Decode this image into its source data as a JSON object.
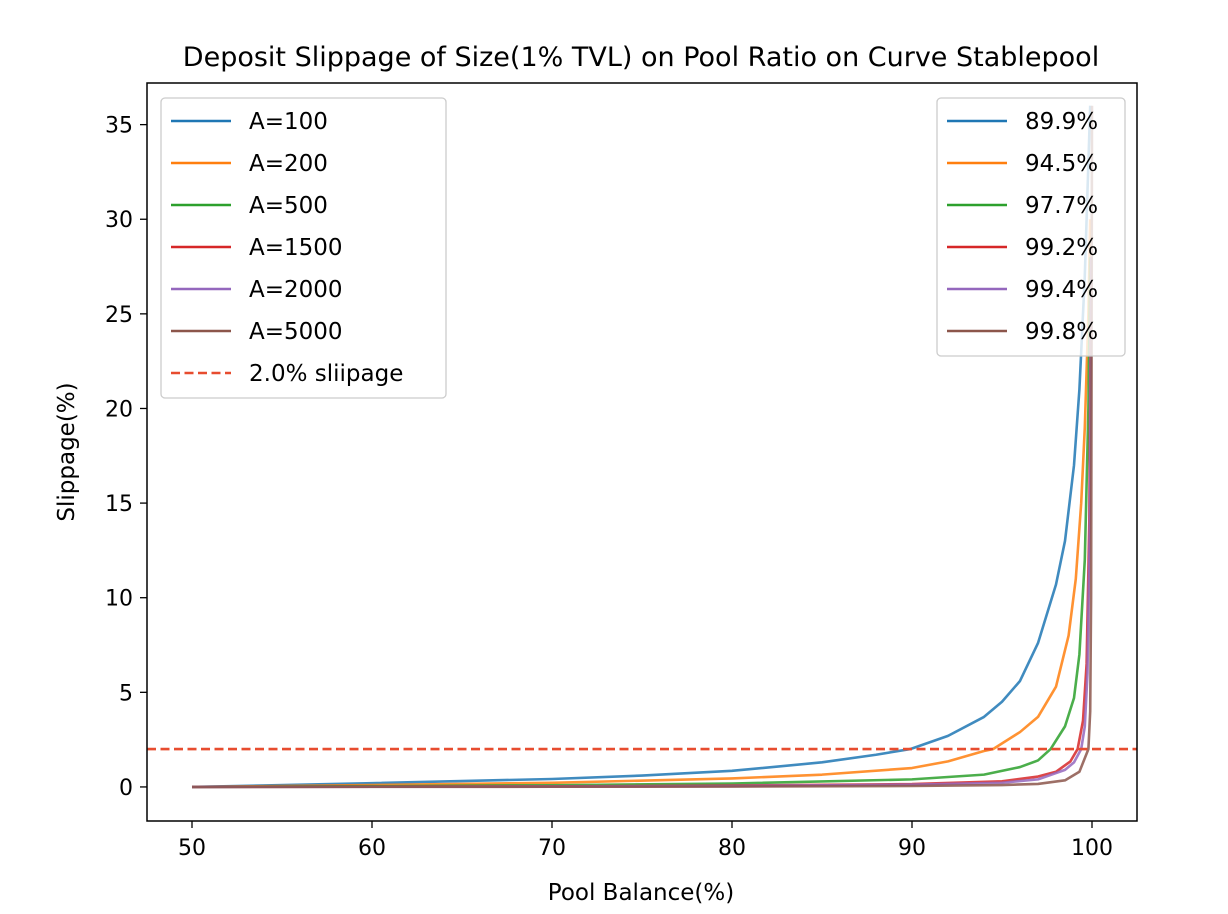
{
  "chart_data": {
    "type": "line",
    "title": "Deposit Slippage of Size(1% TVL) on Pool Ratio on Curve Stablepool",
    "xlabel": "Pool Balance(%)",
    "ylabel": "Slippage(%)",
    "xlim": [
      47.5,
      102.5
    ],
    "ylim": [
      -1.8,
      37.2
    ],
    "xticks": [
      50,
      60,
      70,
      80,
      90,
      100
    ],
    "yticks": [
      0,
      5,
      10,
      15,
      20,
      25,
      30,
      35
    ],
    "grid": false,
    "series": [
      {
        "name": "A=100",
        "color": "#1f77b4",
        "points": [
          [
            50,
            0
          ],
          [
            60,
            0.2
          ],
          [
            70,
            0.42
          ],
          [
            75,
            0.6
          ],
          [
            80,
            0.85
          ],
          [
            85,
            1.3
          ],
          [
            88,
            1.7
          ],
          [
            89.9,
            2.0
          ],
          [
            92,
            2.7
          ],
          [
            94,
            3.7
          ],
          [
            95,
            4.5
          ],
          [
            96,
            5.6
          ],
          [
            97,
            7.6
          ],
          [
            98,
            10.7
          ],
          [
            98.5,
            13
          ],
          [
            99,
            17
          ],
          [
            99.3,
            21
          ],
          [
            99.6,
            27
          ],
          [
            99.8,
            33
          ],
          [
            99.9,
            36
          ]
        ]
      },
      {
        "name": "A=200",
        "color": "#ff7f0e",
        "points": [
          [
            50,
            0
          ],
          [
            60,
            0.1
          ],
          [
            70,
            0.22
          ],
          [
            80,
            0.45
          ],
          [
            85,
            0.65
          ],
          [
            90,
            1.0
          ],
          [
            92,
            1.35
          ],
          [
            94,
            1.9
          ],
          [
            94.5,
            2.0
          ],
          [
            96,
            2.9
          ],
          [
            97,
            3.7
          ],
          [
            98,
            5.3
          ],
          [
            98.7,
            8
          ],
          [
            99.1,
            11
          ],
          [
            99.4,
            15
          ],
          [
            99.6,
            19
          ],
          [
            99.8,
            25
          ],
          [
            99.9,
            30
          ]
        ]
      },
      {
        "name": "A=500",
        "color": "#2ca02c",
        "points": [
          [
            50,
            0
          ],
          [
            60,
            0.04
          ],
          [
            70,
            0.09
          ],
          [
            80,
            0.18
          ],
          [
            90,
            0.4
          ],
          [
            94,
            0.65
          ],
          [
            96,
            1.05
          ],
          [
            97,
            1.4
          ],
          [
            97.7,
            2.0
          ],
          [
            98.5,
            3.2
          ],
          [
            99,
            4.7
          ],
          [
            99.3,
            7
          ],
          [
            99.6,
            12
          ],
          [
            99.8,
            20
          ],
          [
            99.9,
            28
          ]
        ]
      },
      {
        "name": "A=1500",
        "color": "#d62728",
        "points": [
          [
            50,
            0
          ],
          [
            70,
            0.03
          ],
          [
            80,
            0.07
          ],
          [
            90,
            0.15
          ],
          [
            95,
            0.3
          ],
          [
            97,
            0.55
          ],
          [
            98,
            0.8
          ],
          [
            98.8,
            1.35
          ],
          [
            99.2,
            2.0
          ],
          [
            99.5,
            3.5
          ],
          [
            99.7,
            6.5
          ],
          [
            99.85,
            14
          ],
          [
            99.95,
            28
          ]
        ]
      },
      {
        "name": "A=2000",
        "color": "#9467bd",
        "points": [
          [
            50,
            0
          ],
          [
            70,
            0.02
          ],
          [
            80,
            0.05
          ],
          [
            90,
            0.12
          ],
          [
            95,
            0.22
          ],
          [
            97,
            0.4
          ],
          [
            98.5,
            0.9
          ],
          [
            99,
            1.3
          ],
          [
            99.4,
            2.0
          ],
          [
            99.6,
            3.2
          ],
          [
            99.75,
            6
          ],
          [
            99.88,
            14
          ],
          [
            99.96,
            28
          ]
        ]
      },
      {
        "name": "A=5000",
        "color": "#8c564b",
        "points": [
          [
            50,
            0
          ],
          [
            70,
            0.01
          ],
          [
            80,
            0.02
          ],
          [
            90,
            0.05
          ],
          [
            95,
            0.1
          ],
          [
            97,
            0.16
          ],
          [
            98.5,
            0.35
          ],
          [
            99.3,
            0.8
          ],
          [
            99.8,
            2.0
          ],
          [
            99.9,
            4
          ],
          [
            99.95,
            10
          ],
          [
            99.98,
            25
          ],
          [
            100,
            36
          ]
        ]
      }
    ],
    "hline": {
      "name": "2.0% sliipage",
      "y": 2.0,
      "color": "#e74c2f",
      "style": "dashed"
    },
    "legend_left": {
      "placement": "upper left",
      "entries": [
        "A=100",
        "A=200",
        "A=500",
        "A=1500",
        "A=2000",
        "A=5000",
        "2.0% sliipage"
      ]
    },
    "legend_right": {
      "placement": "upper right",
      "entries": [
        {
          "label": "89.9%",
          "color": "#1f77b4"
        },
        {
          "label": "94.5%",
          "color": "#ff7f0e"
        },
        {
          "label": "97.7%",
          "color": "#2ca02c"
        },
        {
          "label": "99.2%",
          "color": "#d62728"
        },
        {
          "label": "99.4%",
          "color": "#9467bd"
        },
        {
          "label": "99.8%",
          "color": "#8c564b"
        }
      ]
    }
  }
}
